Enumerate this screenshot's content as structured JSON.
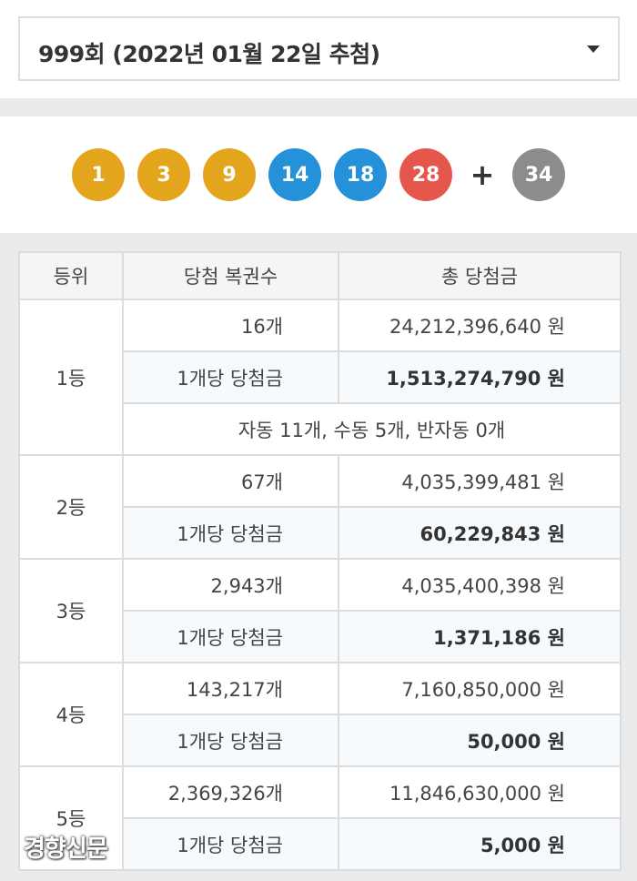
{
  "draw_select": {
    "label": "999회 (2022년 01월 22일 추첨)",
    "arrow_icon": "caret-down-icon"
  },
  "balls": [
    {
      "number": "1",
      "color": "#e3a51b"
    },
    {
      "number": "3",
      "color": "#e3a51b"
    },
    {
      "number": "9",
      "color": "#e3a51b"
    },
    {
      "number": "14",
      "color": "#2591d8"
    },
    {
      "number": "18",
      "color": "#2591d8"
    },
    {
      "number": "28",
      "color": "#e5574c"
    }
  ],
  "plus": "+",
  "bonus_ball": {
    "number": "34",
    "color": "#8c8c8c"
  },
  "table": {
    "headers": [
      "등위",
      "당첨 복권수",
      "총 당첨금"
    ],
    "rows": [
      {
        "rank": "1등",
        "count": "16개",
        "total": "24,212,396,640 원",
        "per_label": "1개당 당첨금",
        "per_amount": "1,513,274,790 원",
        "breakdown": "자동 11개, 수동 5개, 반자동 0개"
      },
      {
        "rank": "2등",
        "count": "67개",
        "total": "4,035,399,481 원",
        "per_label": "1개당 당첨금",
        "per_amount": "60,229,843 원"
      },
      {
        "rank": "3등",
        "count": "2,943개",
        "total": "4,035,400,398 원",
        "per_label": "1개당 당첨금",
        "per_amount": "1,371,186 원"
      },
      {
        "rank": "4등",
        "count": "143,217개",
        "total": "7,160,850,000 원",
        "per_label": "1개당 당첨금",
        "per_amount": "50,000 원"
      },
      {
        "rank": "5등",
        "count": "2,369,326개",
        "total": "11,846,630,000 원",
        "per_label": "1개당 당첨금",
        "per_amount": "5,000 원"
      }
    ]
  },
  "watermark": "경향신문"
}
